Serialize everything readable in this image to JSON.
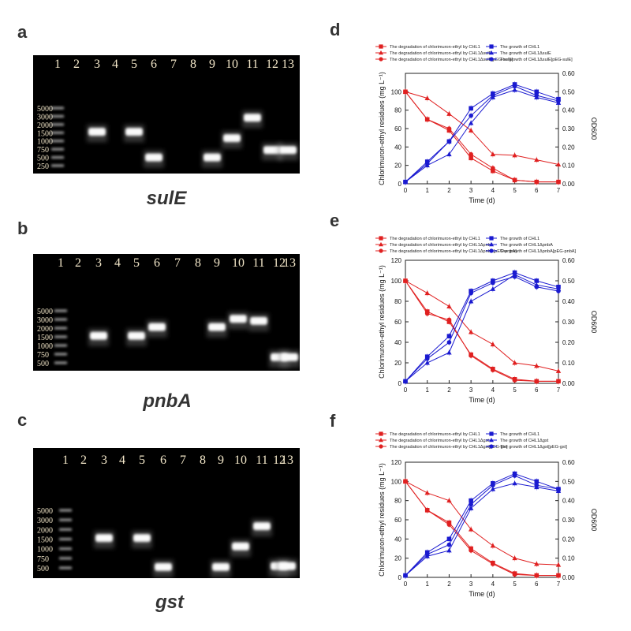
{
  "panels": [
    {
      "label": "a",
      "gene": "sulE"
    },
    {
      "label": "b",
      "gene": "pnbA"
    },
    {
      "label": "c",
      "gene": "gst"
    },
    {
      "label": "d"
    },
    {
      "label": "e"
    },
    {
      "label": "f"
    }
  ],
  "gels": [
    {
      "lanes": [
        "1",
        "2",
        "3",
        "4",
        "5",
        "6",
        "7",
        "8",
        "9",
        "10",
        "11",
        "12",
        "13"
      ],
      "ladder": [
        "5000",
        "3000",
        "2000",
        "1500",
        "1000",
        "750",
        "500",
        "250"
      ],
      "bands": [
        {
          "lane": 3,
          "size_bp": 1550
        },
        {
          "lane": 5,
          "size_bp": 1550
        },
        {
          "lane": 6,
          "size_bp": 500
        },
        {
          "lane": 9,
          "size_bp": 500
        },
        {
          "lane": 10,
          "size_bp": 1150
        },
        {
          "lane": 11,
          "size_bp": 2800
        },
        {
          "lane": 12,
          "size_bp": 720
        },
        {
          "lane": 13,
          "size_bp": 720
        }
      ]
    },
    {
      "lanes": [
        "1",
        "2",
        "3",
        "4",
        "5",
        "6",
        "7",
        "8",
        "9",
        "10",
        "11",
        "12",
        "13"
      ],
      "ladder": [
        "5000",
        "3000",
        "2000",
        "1500",
        "1000",
        "750",
        "500"
      ],
      "bands": [
        {
          "lane": 3,
          "size_bp": 1550
        },
        {
          "lane": 5,
          "size_bp": 1550
        },
        {
          "lane": 6,
          "size_bp": 2100
        },
        {
          "lane": 9,
          "size_bp": 2100
        },
        {
          "lane": 10,
          "size_bp": 3100
        },
        {
          "lane": 11,
          "size_bp": 2800
        },
        {
          "lane": 12,
          "size_bp": 650
        },
        {
          "lane": 13,
          "size_bp": 650
        }
      ]
    },
    {
      "lanes": [
        "1",
        "2",
        "3",
        "4",
        "5",
        "6",
        "7",
        "8",
        "9",
        "10",
        "11",
        "12",
        "13"
      ],
      "ladder": [
        "5000",
        "3000",
        "2000",
        "1500",
        "1000",
        "750",
        "500"
      ],
      "bands": [
        {
          "lane": 3,
          "size_bp": 1550
        },
        {
          "lane": 5,
          "size_bp": 1550
        },
        {
          "lane": 6,
          "size_bp": 520
        },
        {
          "lane": 9,
          "size_bp": 520
        },
        {
          "lane": 10,
          "size_bp": 1100
        },
        {
          "lane": 11,
          "size_bp": 2300
        },
        {
          "lane": 12,
          "size_bp": 540
        },
        {
          "lane": 13,
          "size_bp": 540
        }
      ]
    }
  ],
  "colors": {
    "degradation": "#e02020",
    "growth": "#1a1ad0"
  },
  "chart_data": [
    {
      "type": "line",
      "xlabel": "Time (d)",
      "ylabel": "Chlorimuron-ethyl residues (mg L⁻¹)",
      "y2label": "OD600",
      "x": [
        0,
        1,
        2,
        3,
        4,
        5,
        6,
        7
      ],
      "xlim": [
        0,
        7
      ],
      "ylim": [
        0,
        120
      ],
      "y2lim": [
        0,
        0.6
      ],
      "yticks": [
        "0",
        "20",
        "40",
        "60",
        "80",
        "100"
      ],
      "y2ticks": [
        "0.00",
        "0.10",
        "0.20",
        "0.30",
        "0.40",
        "0.50",
        "0.60"
      ],
      "xticks": [
        "0",
        "1",
        "2",
        "3",
        "4",
        "5",
        "6",
        "7"
      ],
      "series": [
        {
          "name": "The degradation of chlorimuron-ethyl by CHL1",
          "axis": "left",
          "marker": "square",
          "values": [
            100,
            70,
            58,
            28,
            14,
            4,
            2,
            2
          ]
        },
        {
          "name": "The degradation of chlorimuron-ethyl by CHL1ΔsulE",
          "axis": "left",
          "marker": "triangle",
          "values": [
            100,
            93,
            76,
            58,
            32,
            31,
            26,
            21
          ]
        },
        {
          "name": "The degradation of chlorimuron-ethyl by CHL1ΔsulE[pEG-sulE]",
          "axis": "left",
          "marker": "circle",
          "values": [
            100,
            70,
            60,
            32,
            17,
            4,
            2,
            2
          ]
        },
        {
          "name": "The growth of CHL1",
          "axis": "right",
          "marker": "square",
          "values": [
            0.01,
            0.12,
            0.23,
            0.41,
            0.49,
            0.54,
            0.5,
            0.46
          ]
        },
        {
          "name": "The growth of CHL1ΔsulE",
          "axis": "right",
          "marker": "triangle",
          "values": [
            0.01,
            0.1,
            0.16,
            0.33,
            0.47,
            0.51,
            0.47,
            0.44
          ]
        },
        {
          "name": "The growth of CHL1ΔsulE[pEG-sulE]",
          "axis": "right",
          "marker": "circle",
          "values": [
            0.01,
            0.11,
            0.23,
            0.37,
            0.48,
            0.53,
            0.48,
            0.45
          ]
        }
      ]
    },
    {
      "type": "line",
      "xlabel": "Time (d)",
      "ylabel": "Chlorimuron-ethyl residues (mg L⁻¹)",
      "y2label": "OD600",
      "x": [
        0,
        1,
        2,
        3,
        4,
        5,
        6,
        7
      ],
      "xlim": [
        0,
        7
      ],
      "ylim": [
        0,
        120
      ],
      "y2lim": [
        0,
        0.6
      ],
      "yticks": [
        "0",
        "20",
        "40",
        "60",
        "80",
        "100",
        "120"
      ],
      "y2ticks": [
        "0.00",
        "0.10",
        "0.20",
        "0.30",
        "0.40",
        "0.50",
        "0.60"
      ],
      "xticks": [
        "0",
        "1",
        "2",
        "3",
        "4",
        "5",
        "6",
        "7"
      ],
      "series": [
        {
          "name": "The degradation of chlorimuron-ethyl by CHL1",
          "axis": "left",
          "marker": "square",
          "values": [
            100,
            70,
            60,
            28,
            14,
            4,
            2,
            2
          ]
        },
        {
          "name": "The degradation of chlorimuron-ethyl by CHL1ΔpnbA",
          "axis": "left",
          "marker": "triangle",
          "values": [
            100,
            88,
            75,
            50,
            38,
            20,
            17,
            12
          ]
        },
        {
          "name": "The degradation of chlorimuron-ethyl by CHL1ΔpnbA[pEG-pnbA]",
          "axis": "left",
          "marker": "circle",
          "values": [
            100,
            68,
            62,
            27,
            13,
            3,
            2,
            2
          ]
        },
        {
          "name": "The growth of CHL1",
          "axis": "right",
          "marker": "square",
          "values": [
            0.01,
            0.13,
            0.23,
            0.45,
            0.5,
            0.54,
            0.5,
            0.47
          ]
        },
        {
          "name": "The growth of CHL1ΔpnbA",
          "axis": "right",
          "marker": "triangle",
          "values": [
            0.01,
            0.1,
            0.15,
            0.4,
            0.46,
            0.53,
            0.48,
            0.46
          ]
        },
        {
          "name": "The growth of CHL1ΔpnbA[pEG-pnbA]",
          "axis": "right",
          "marker": "circle",
          "values": [
            0.01,
            0.12,
            0.2,
            0.44,
            0.49,
            0.52,
            0.47,
            0.45
          ]
        }
      ]
    },
    {
      "type": "line",
      "xlabel": "Time (d)",
      "ylabel": "Chlorimuron-ethyl residues (mg L⁻¹)",
      "y2label": "OD600",
      "x": [
        0,
        1,
        2,
        3,
        4,
        5,
        6,
        7
      ],
      "xlim": [
        0,
        7
      ],
      "ylim": [
        0,
        120
      ],
      "y2lim": [
        0,
        0.6
      ],
      "yticks": [
        "0",
        "20",
        "40",
        "60",
        "80",
        "100",
        "120"
      ],
      "y2ticks": [
        "0.00",
        "0.10",
        "0.20",
        "0.30",
        "0.40",
        "0.50",
        "0.60"
      ],
      "xticks": [
        "0",
        "1",
        "2",
        "3",
        "4",
        "5",
        "6",
        "7"
      ],
      "series": [
        {
          "name": "The degradation of chlorimuron-ethyl by CHL1",
          "axis": "left",
          "marker": "square",
          "values": [
            100,
            70,
            57,
            30,
            15,
            4,
            2,
            2
          ]
        },
        {
          "name": "The degradation of chlorimuron-ethyl by CHL1Δgst",
          "axis": "left",
          "marker": "triangle",
          "values": [
            100,
            88,
            80,
            50,
            33,
            20,
            14,
            13
          ]
        },
        {
          "name": "The degradation of chlorimuron-ethyl by CHL1Δgst[pEG-gst]",
          "axis": "left",
          "marker": "circle",
          "values": [
            100,
            70,
            55,
            28,
            14,
            3,
            2,
            2
          ]
        },
        {
          "name": "The growth of CHL1",
          "axis": "right",
          "marker": "square",
          "values": [
            0.01,
            0.13,
            0.2,
            0.4,
            0.49,
            0.54,
            0.5,
            0.46
          ]
        },
        {
          "name": "The growth of CHL1Δgst",
          "axis": "right",
          "marker": "triangle",
          "values": [
            0.01,
            0.11,
            0.14,
            0.36,
            0.46,
            0.49,
            0.47,
            0.45
          ]
        },
        {
          "name": "The growth of CHL1Δgst[pEG-gst]",
          "axis": "right",
          "marker": "circle",
          "values": [
            0.01,
            0.12,
            0.17,
            0.38,
            0.48,
            0.53,
            0.48,
            0.46
          ]
        }
      ]
    }
  ]
}
